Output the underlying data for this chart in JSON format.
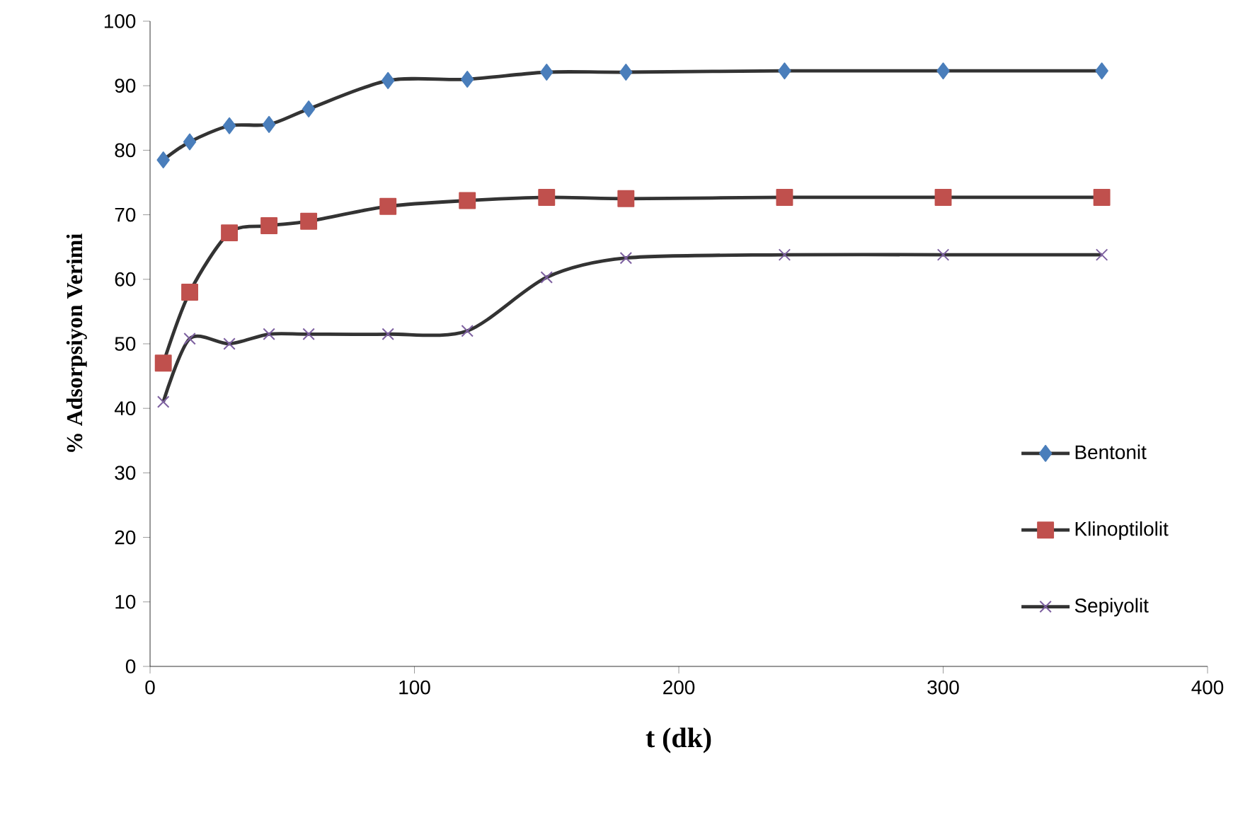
{
  "chart_data": {
    "type": "line",
    "xlabel": "t (dk)",
    "ylabel": "% Adsorpsiyon Verimi",
    "x": [
      5,
      15,
      30,
      45,
      60,
      90,
      120,
      150,
      180,
      240,
      300,
      360
    ],
    "series": [
      {
        "name": "Bentonit",
        "color": "#4a7ebb",
        "marker": "diamond",
        "values": [
          78.5,
          81.3,
          83.8,
          84,
          86.4,
          90.8,
          91,
          92.1,
          92.1,
          92.3,
          92.3,
          92.3
        ]
      },
      {
        "name": "Klinoptilolit",
        "color": "#c0504d",
        "marker": "square",
        "values": [
          47,
          58,
          67.2,
          68.3,
          69,
          71.3,
          72.2,
          72.7,
          72.5,
          72.7,
          72.7,
          72.7
        ]
      },
      {
        "name": "Sepiyolit",
        "color": "#7d60a0",
        "marker": "cross",
        "values": [
          41,
          50.8,
          50,
          51.5,
          51.5,
          51.5,
          52,
          60.3,
          63.3,
          63.8,
          63.8,
          63.8
        ]
      }
    ],
    "xlim": [
      0,
      400
    ],
    "xticks": [
      0,
      100,
      200,
      300,
      400
    ],
    "ylim": [
      0,
      100
    ],
    "yticks": [
      0,
      10,
      20,
      30,
      40,
      50,
      60,
      70,
      80,
      90,
      100
    ],
    "grid": false,
    "legend": "bottom right",
    "line_style": "solid"
  }
}
